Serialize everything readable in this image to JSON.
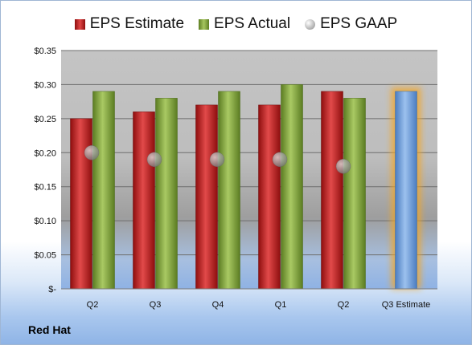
{
  "company": "Red Hat",
  "chart_data": {
    "type": "bar",
    "categories": [
      "Q2",
      "Q3",
      "Q4",
      "Q1",
      "Q2",
      "Q3 Estimate"
    ],
    "series": [
      {
        "name": "EPS Estimate",
        "values": [
          0.25,
          0.26,
          0.27,
          0.27,
          0.29,
          0.29
        ],
        "color": "#c42222"
      },
      {
        "name": "EPS Actual",
        "values": [
          0.29,
          0.28,
          0.29,
          0.3,
          0.28,
          null
        ],
        "color": "#84a844"
      },
      {
        "name": "EPS GAAP",
        "values": [
          0.2,
          0.19,
          0.19,
          0.19,
          0.18,
          null
        ],
        "color": "#a8a8a8",
        "marker": "circle"
      }
    ],
    "y_ticks": [
      "$-",
      "$0.05",
      "$0.10",
      "$0.15",
      "$0.20",
      "$0.25",
      "$0.30",
      "$0.35"
    ],
    "ylim": [
      0,
      0.35
    ],
    "grid": true,
    "legend": "top",
    "highlight": {
      "category": "Q3 Estimate",
      "fill": "#6f9fdc",
      "glow": "#f5a623"
    }
  }
}
